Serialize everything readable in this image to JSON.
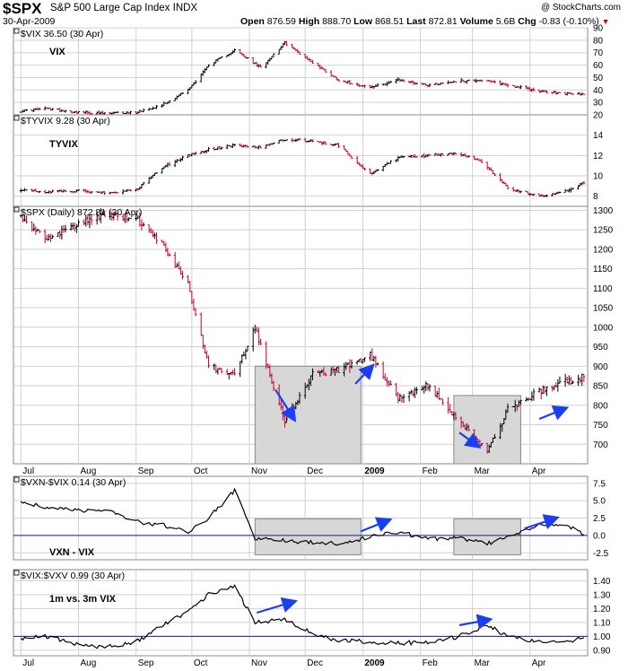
{
  "header": {
    "symbol": "$SPX",
    "name": "S&P 500 Large Cap Index",
    "exchange": "INDX",
    "date": "30-Apr-2009",
    "open_label": "Open",
    "open": "876.59",
    "high_label": "High",
    "high": "888.70",
    "low_label": "Low",
    "low": "868.51",
    "last_label": "Last",
    "last": "872.81",
    "volume_label": "Volume",
    "volume": "5.6B",
    "chg_label": "Chg",
    "chg": "-0.83 (-0.10%)",
    "watermark": "@ StockCharts.com"
  },
  "colors": {
    "up": "#000000",
    "down": "#cc0033",
    "arrow": "#1a3ef0",
    "refline": "#1a237e",
    "shade": "#d7d7d7"
  },
  "chart_data": [
    {
      "type": "ohlc",
      "legend": "$VIX 36.50 (30 Apr)",
      "label": "VIX",
      "ylim": [
        20,
        90
      ],
      "yticks": [
        20,
        30,
        40,
        50,
        60,
        70,
        80,
        90
      ],
      "x": [
        "2008-07-01",
        "2008-07-15",
        "2008-08-01",
        "2008-08-15",
        "2008-09-01",
        "2008-09-15",
        "2008-09-29",
        "2008-10-10",
        "2008-10-24",
        "2008-11-07",
        "2008-11-20",
        "2008-12-05",
        "2008-12-19",
        "2009-01-05",
        "2009-01-20",
        "2009-02-05",
        "2009-02-20",
        "2009-03-05",
        "2009-03-20",
        "2009-04-06",
        "2009-04-20",
        "2009-04-30"
      ],
      "values": [
        23,
        25,
        22,
        21,
        22,
        28,
        40,
        60,
        72,
        58,
        78,
        62,
        48,
        42,
        48,
        44,
        47,
        48,
        44,
        39,
        37,
        36.5
      ]
    },
    {
      "type": "ohlc",
      "legend": "$TYVIX 9.28 (30 Apr)",
      "label": "TYVIX",
      "ylim": [
        7,
        16
      ],
      "yticks": [
        8,
        10,
        12,
        14
      ],
      "x": [
        "2008-07-01",
        "2008-07-15",
        "2008-08-01",
        "2008-08-15",
        "2008-09-01",
        "2008-09-15",
        "2008-09-29",
        "2008-10-10",
        "2008-10-24",
        "2008-11-07",
        "2008-11-20",
        "2008-12-05",
        "2008-12-19",
        "2009-01-05",
        "2009-01-20",
        "2009-02-05",
        "2009-02-20",
        "2009-03-05",
        "2009-03-20",
        "2009-04-06",
        "2009-04-20",
        "2009-04-30"
      ],
      "values": [
        8.6,
        8.4,
        8.5,
        8.3,
        8.6,
        10.8,
        12.0,
        12.6,
        13.0,
        12.8,
        13.6,
        13.4,
        13.0,
        10.2,
        11.8,
        12.0,
        12.2,
        11.6,
        8.8,
        8.0,
        8.5,
        9.28
      ]
    },
    {
      "type": "ohlc",
      "legend": "$SPX (Daily) 872.81 (30 Apr)",
      "ylim": [
        650,
        1310
      ],
      "yticks": [
        700,
        750,
        800,
        850,
        900,
        950,
        1000,
        1050,
        1100,
        1150,
        1200,
        1250,
        1300
      ],
      "x": [
        "2008-07-01",
        "2008-07-15",
        "2008-08-01",
        "2008-08-15",
        "2008-09-01",
        "2008-09-15",
        "2008-09-29",
        "2008-10-10",
        "2008-10-24",
        "2008-11-04",
        "2008-11-20",
        "2008-12-05",
        "2008-12-19",
        "2009-01-05",
        "2009-01-20",
        "2009-02-05",
        "2009-02-20",
        "2009-03-09",
        "2009-03-20",
        "2009-04-06",
        "2009-04-20",
        "2009-04-30"
      ],
      "values": [
        1280,
        1225,
        1265,
        1290,
        1280,
        1215,
        1110,
        900,
        880,
        1000,
        760,
        880,
        890,
        930,
        820,
        850,
        770,
        680,
        790,
        835,
        860,
        872.81
      ]
    },
    {
      "type": "line",
      "legend": "$VXN-$VIX 0.14 (30 Apr)",
      "label": "VXN - VIX",
      "ylim": [
        -3.5,
        8.5
      ],
      "yticks": [
        -2.5,
        0.0,
        2.5,
        5.0,
        7.5
      ],
      "ytick_labels": [
        "-2.5",
        "0.0",
        "2.5",
        "5.0",
        "7.5"
      ],
      "reference_line": 0,
      "x": [
        "2008-07-01",
        "2008-07-15",
        "2008-08-01",
        "2008-08-15",
        "2008-09-01",
        "2008-09-15",
        "2008-09-29",
        "2008-10-10",
        "2008-10-24",
        "2008-11-04",
        "2008-11-20",
        "2008-12-05",
        "2008-12-19",
        "2009-01-05",
        "2009-01-20",
        "2009-02-05",
        "2009-02-20",
        "2009-03-09",
        "2009-03-20",
        "2009-04-06",
        "2009-04-20",
        "2009-04-30"
      ],
      "values": [
        5.0,
        4.0,
        3.5,
        3.8,
        2.0,
        1.5,
        0.5,
        2.5,
        6.5,
        -0.5,
        -0.8,
        -1.0,
        -1.2,
        -0.2,
        0.5,
        -0.5,
        -0.3,
        -1.2,
        -0.2,
        1.5,
        1.5,
        0.14
      ]
    },
    {
      "type": "line",
      "legend": "$VIX:$VXV 0.99 (30 Apr)",
      "label": "1m vs. 3m VIX",
      "ylim": [
        0.86,
        1.48
      ],
      "yticks": [
        0.9,
        1.0,
        1.1,
        1.2,
        1.3,
        1.4
      ],
      "ytick_labels": [
        "0.90",
        "1.00",
        "1.10",
        "1.20",
        "1.30",
        "1.40"
      ],
      "reference_line": 1.0,
      "x": [
        "2008-07-01",
        "2008-07-15",
        "2008-08-01",
        "2008-08-15",
        "2008-09-01",
        "2008-09-15",
        "2008-09-29",
        "2008-10-10",
        "2008-10-24",
        "2008-11-04",
        "2008-11-20",
        "2008-12-05",
        "2008-12-19",
        "2009-01-05",
        "2009-01-20",
        "2009-02-05",
        "2009-02-20",
        "2009-03-09",
        "2009-03-20",
        "2009-04-06",
        "2009-04-20",
        "2009-04-30"
      ],
      "values": [
        0.98,
        1.0,
        0.94,
        0.92,
        0.96,
        1.08,
        1.18,
        1.3,
        1.36,
        1.1,
        1.12,
        1.02,
        0.97,
        0.96,
        0.95,
        0.96,
        0.99,
        1.08,
        1.0,
        0.96,
        0.96,
        0.99
      ]
    }
  ],
  "x_axis": {
    "labels": [
      "Jul",
      "Aug",
      "Sep",
      "Oct",
      "Nov",
      "Dec",
      "2009",
      "Feb",
      "Mar",
      "Apr"
    ],
    "dates": [
      "2008-07-01",
      "2008-08-01",
      "2008-09-01",
      "2008-10-01",
      "2008-11-01",
      "2008-12-01",
      "2009-01-01",
      "2009-02-01",
      "2009-03-01",
      "2009-04-01"
    ]
  },
  "highlight_periods": [
    {
      "from": "2008-11-04",
      "to": "2008-12-31",
      "spx_range": [
        600,
        900
      ],
      "vxn_range": [
        -2.8,
        2.4
      ]
    },
    {
      "from": "2009-02-19",
      "to": "2009-03-27",
      "spx_range": [
        600,
        825
      ],
      "vxn_range": [
        -2.8,
        2.4
      ]
    }
  ],
  "annotations": [
    {
      "panel": 2,
      "from": [
        "2008-11-15",
        840
      ],
      "to": [
        "2008-11-25",
        765
      ]
    },
    {
      "panel": 2,
      "from": [
        "2008-12-28",
        855
      ],
      "to": [
        "2009-01-06",
        900
      ]
    },
    {
      "panel": 2,
      "from": [
        "2009-02-22",
        730
      ],
      "to": [
        "2009-03-04",
        695
      ]
    },
    {
      "panel": 2,
      "from": [
        "2009-04-06",
        765
      ],
      "to": [
        "2009-04-20",
        792
      ]
    },
    {
      "panel": 3,
      "from": [
        "2008-12-31",
        0.6
      ],
      "to": [
        "2009-01-15",
        2.2
      ]
    },
    {
      "panel": 3,
      "from": [
        "2009-03-29",
        1.0
      ],
      "to": [
        "2009-04-15",
        2.5
      ]
    },
    {
      "panel": 4,
      "from": [
        "2008-11-05",
        1.17
      ],
      "to": [
        "2008-11-25",
        1.25
      ]
    },
    {
      "panel": 4,
      "from": [
        "2009-02-22",
        1.08
      ],
      "to": [
        "2009-03-10",
        1.12
      ]
    }
  ]
}
